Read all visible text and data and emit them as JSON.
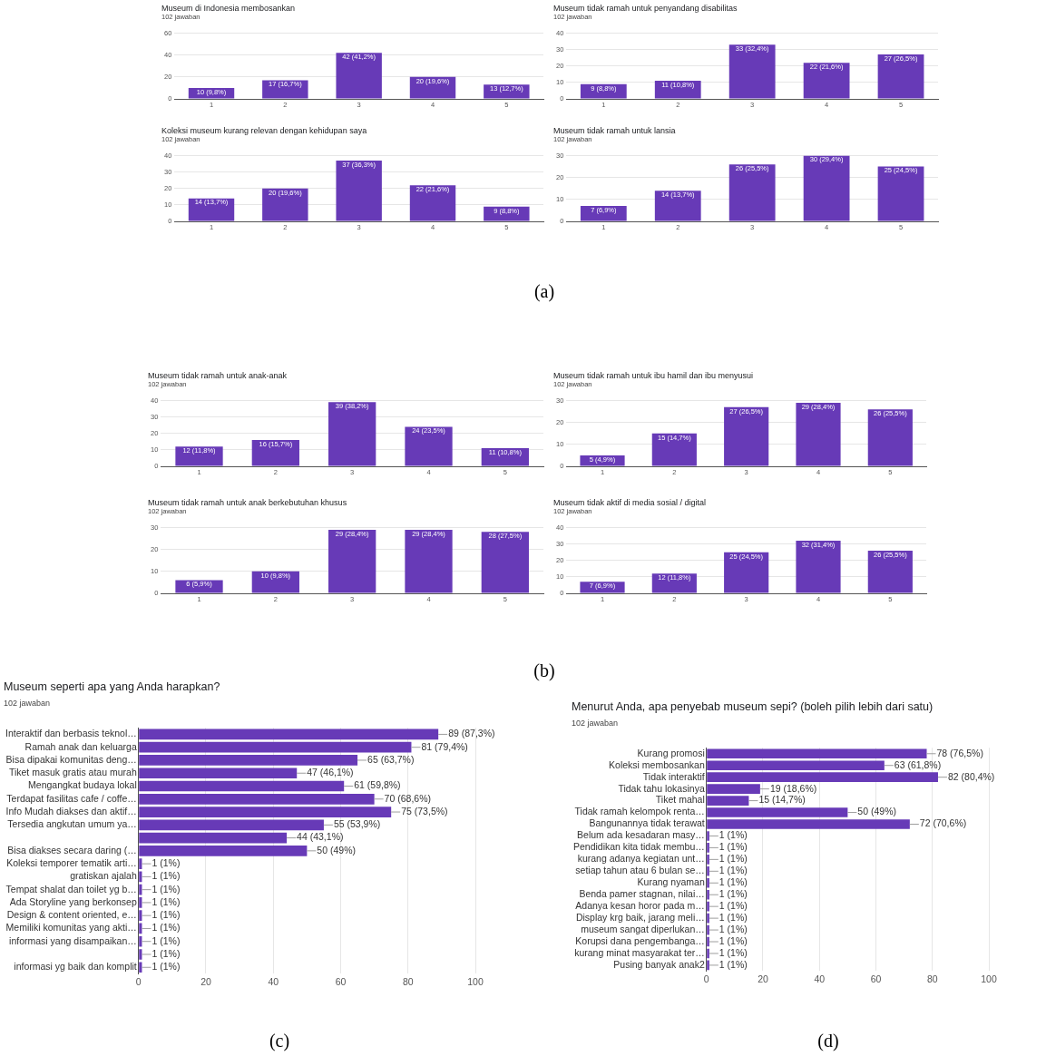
{
  "chart_data": [
    {
      "type": "bar",
      "title": "Museum di Indonesia membosankan",
      "subtitle": "102 jawaban",
      "categories": [
        "1",
        "2",
        "3",
        "4",
        "5"
      ],
      "values": [
        10,
        17,
        42,
        20,
        13
      ],
      "value_labels": [
        "10 (9,8%)",
        "17 (16,7%)",
        "42 (41,2%)",
        "20 (19,6%)",
        "13 (12,7%)"
      ],
      "color": "#673ab7",
      "ylim": [
        0,
        60
      ],
      "yticks": [
        0,
        20,
        40,
        60
      ],
      "grid": "y"
    },
    {
      "type": "bar",
      "title": "Museum tidak ramah untuk penyandang disabilitas",
      "subtitle": "102 jawaban",
      "categories": [
        "1",
        "2",
        "3",
        "4",
        "5"
      ],
      "values": [
        9,
        11,
        33,
        22,
        27
      ],
      "value_labels": [
        "9 (8,8%)",
        "11 (10,8%)",
        "33 (32,4%)",
        "22 (21,6%)",
        "27 (26,5%)"
      ],
      "color": "#673ab7",
      "ylim": [
        0,
        40
      ],
      "yticks": [
        0,
        10,
        20,
        30,
        40
      ],
      "grid": "y"
    },
    {
      "type": "bar",
      "title": "Koleksi museum kurang relevan dengan kehidupan saya",
      "subtitle": "102 jawaban",
      "categories": [
        "1",
        "2",
        "3",
        "4",
        "5"
      ],
      "values": [
        14,
        20,
        37,
        22,
        9
      ],
      "value_labels": [
        "14 (13,7%)",
        "20 (19,6%)",
        "37 (36,3%)",
        "22 (21,6%)",
        "9 (8,8%)"
      ],
      "color": "#673ab7",
      "ylim": [
        0,
        40
      ],
      "yticks": [
        0,
        10,
        20,
        30,
        40
      ],
      "grid": "y"
    },
    {
      "type": "bar",
      "title": "Museum tidak ramah untuk lansia",
      "subtitle": "102 jawaban",
      "categories": [
        "1",
        "2",
        "3",
        "4",
        "5"
      ],
      "values": [
        7,
        14,
        26,
        30,
        25
      ],
      "value_labels": [
        "7 (6,9%)",
        "14 (13,7%)",
        "26 (25,5%)",
        "30 (29,4%)",
        "25 (24,5%)"
      ],
      "color": "#673ab7",
      "ylim": [
        0,
        30
      ],
      "yticks": [
        0,
        10,
        20,
        30
      ],
      "grid": "y",
      "annotations": [
        "(a)"
      ]
    },
    {
      "type": "bar",
      "title": "Museum tidak ramah untuk anak-anak",
      "subtitle": "102 jawaban",
      "categories": [
        "1",
        "2",
        "3",
        "4",
        "5"
      ],
      "values": [
        12,
        16,
        39,
        24,
        11
      ],
      "value_labels": [
        "12 (11,8%)",
        "16 (15,7%)",
        "39 (38,2%)",
        "24 (23,5%)",
        "11 (10,8%)"
      ],
      "color": "#673ab7",
      "ylim": [
        0,
        40
      ],
      "yticks": [
        0,
        10,
        20,
        30,
        40
      ],
      "grid": "y"
    },
    {
      "type": "bar",
      "title": "Museum tidak ramah untuk ibu hamil dan ibu menyusui",
      "subtitle": "102 jawaban",
      "categories": [
        "1",
        "2",
        "3",
        "4",
        "5"
      ],
      "values": [
        5,
        15,
        27,
        29,
        26
      ],
      "value_labels": [
        "5 (4,9%)",
        "15 (14,7%)",
        "27 (26,5%)",
        "29 (28,4%)",
        "26 (25,5%)"
      ],
      "color": "#673ab7",
      "ylim": [
        0,
        30
      ],
      "yticks": [
        0,
        10,
        20,
        30
      ],
      "grid": "y"
    },
    {
      "type": "bar",
      "title": "Museum tidak ramah untuk anak berkebutuhan khusus",
      "subtitle": "102 jawaban",
      "categories": [
        "1",
        "2",
        "3",
        "4",
        "5"
      ],
      "values": [
        6,
        10,
        29,
        29,
        28
      ],
      "value_labels": [
        "6 (5,9%)",
        "10 (9,8%)",
        "29 (28,4%)",
        "29 (28,4%)",
        "28 (27,5%)"
      ],
      "color": "#673ab7",
      "ylim": [
        0,
        30
      ],
      "yticks": [
        0,
        10,
        20,
        30
      ],
      "grid": "y"
    },
    {
      "type": "bar",
      "title": "Museum tidak aktif di media sosial / digital",
      "subtitle": "102 jawaban",
      "categories": [
        "1",
        "2",
        "3",
        "4",
        "5"
      ],
      "values": [
        7,
        12,
        25,
        32,
        26
      ],
      "value_labels": [
        "7 (6,9%)",
        "12 (11,8%)",
        "25 (24,5%)",
        "32 (31,4%)",
        "26 (25,5%)"
      ],
      "color": "#673ab7",
      "ylim": [
        0,
        40
      ],
      "yticks": [
        0,
        10,
        20,
        30,
        40
      ],
      "grid": "y",
      "annotations": [
        "(b)"
      ]
    },
    {
      "type": "bar",
      "orientation": "horizontal",
      "title": "Museum seperti apa yang Anda harapkan?",
      "subtitle": "102 jawaban",
      "categories": [
        "Interaktif dan berbasis teknol…",
        "Ramah anak dan keluarga",
        "Bisa dipakai komunitas deng…",
        "Tiket masuk gratis atau murah",
        "Mengangkat budaya lokal",
        "Terdapat fasilitas cafe / coffe…",
        "Info Mudah diakses dan aktif…",
        "Tersedia angkutan umum ya…",
        null,
        "Bisa diakses secara daring (…",
        "Koleksi temporer tematik arti…",
        "gratiskan ajalah",
        "Tempat shalat dan toilet yg b…",
        "Ada Storyline yang berkonsep",
        "Design & content oriented, e…",
        "Memiliki komunitas yang akti…",
        "informasi yang disampaikan…",
        null,
        "informasi yg baik dan komplit"
      ],
      "values": [
        89,
        81,
        65,
        47,
        61,
        70,
        75,
        55,
        44,
        50,
        1,
        1,
        1,
        1,
        1,
        1,
        1,
        1,
        1
      ],
      "value_labels": [
        "89 (87,3%)",
        "81 (79,4%)",
        "65 (63,7%)",
        "47 (46,1%)",
        "61 (59,8%)",
        "70 (68,6%)",
        "75 (73,5%)",
        "55 (53,9%)",
        "44 (43,1%)",
        "50 (49%)",
        "1 (1%)",
        "1 (1%)",
        "1 (1%)",
        "1 (1%)",
        "1 (1%)",
        "1 (1%)",
        "1 (1%)",
        "1 (1%)",
        "1 (1%)"
      ],
      "color": "#673ab7",
      "xlim": [
        0,
        100
      ],
      "xticks": [
        0,
        20,
        40,
        60,
        80,
        100
      ],
      "grid": "x",
      "annotations": [
        "(c)"
      ]
    },
    {
      "type": "bar",
      "orientation": "horizontal",
      "title": "Menurut Anda, apa penyebab museum sepi? (boleh pilih lebih dari satu)",
      "subtitle": "102 jawaban",
      "categories": [
        "Kurang promosi",
        "Koleksi membosankan",
        "Tidak interaktif",
        "Tidak tahu lokasinya",
        "Tiket mahal",
        "Tidak ramah kelompok renta…",
        "Bangunannya tidak terawat",
        "Belum ada kesadaran masy…",
        "Pendidikan kita tidak membu…",
        "kurang adanya kegiatan unt…",
        "setiap tahun atau 6 bulan se…",
        "Kurang nyaman",
        "Benda pamer stagnan, nilai…",
        "Adanya kesan horor pada m…",
        "Display krg baik, jarang meli…",
        "museum sangat diperlukan…",
        "Korupsi dana pengembanga…",
        "kurang minat masyarakat ter…",
        "Pusing banyak anak2"
      ],
      "values": [
        78,
        63,
        82,
        19,
        15,
        50,
        72,
        1,
        1,
        1,
        1,
        1,
        1,
        1,
        1,
        1,
        1,
        1,
        1
      ],
      "value_labels": [
        "78 (76,5%)",
        "63 (61,8%)",
        "82 (80,4%)",
        "19 (18,6%)",
        "15 (14,7%)",
        "50 (49%)",
        "72 (70,6%)",
        "1 (1%)",
        "1 (1%)",
        "1 (1%)",
        "1 (1%)",
        "1 (1%)",
        "1 (1%)",
        "1 (1%)",
        "1 (1%)",
        "1 (1%)",
        "1 (1%)",
        "1 (1%)",
        "1 (1%)"
      ],
      "color": "#673ab7",
      "xlim": [
        0,
        100
      ],
      "xticks": [
        0,
        20,
        40,
        60,
        80,
        100
      ],
      "grid": "x",
      "annotations": [
        "(d)"
      ]
    }
  ]
}
